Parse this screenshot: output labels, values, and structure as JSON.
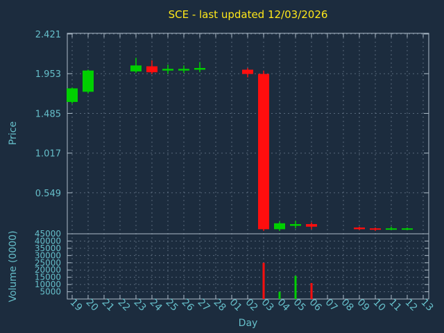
{
  "chart_data": {
    "type": "candlestick",
    "title": "SCE - last updated 12/03/2026",
    "xlabel": "Day",
    "ylabel": "Price",
    "y2label": "Volume (0000)",
    "legend": "none",
    "grid": true,
    "categories": [
      "19",
      "20",
      "21",
      "22",
      "23",
      "24",
      "25",
      "26",
      "27",
      "28",
      "01",
      "02",
      "03",
      "04",
      "05",
      "06",
      "07",
      "08",
      "09",
      "10",
      "11",
      "12",
      "13"
    ],
    "ohlc": [
      [
        1.62,
        1.79,
        1.6,
        1.78
      ],
      [
        1.74,
        2.0,
        1.72,
        1.99
      ],
      null,
      null,
      [
        1.98,
        2.14,
        1.96,
        2.05
      ],
      [
        2.04,
        2.11,
        1.95,
        1.97
      ],
      [
        1.99,
        2.06,
        1.95,
        2.01
      ],
      [
        1.99,
        2.05,
        1.96,
        2.01
      ],
      [
        2.0,
        2.09,
        1.97,
        2.02
      ],
      null,
      null,
      [
        2.0,
        2.02,
        1.91,
        1.95
      ],
      [
        1.95,
        1.99,
        0.1,
        0.12
      ],
      [
        0.12,
        0.21,
        0.1,
        0.19
      ],
      [
        0.16,
        0.22,
        0.13,
        0.18
      ],
      [
        0.18,
        0.2,
        0.12,
        0.15
      ],
      null,
      null,
      [
        0.14,
        0.15,
        0.11,
        0.12
      ],
      [
        0.13,
        0.14,
        0.1,
        0.12
      ],
      [
        0.12,
        0.15,
        0.11,
        0.13
      ],
      [
        0.12,
        0.14,
        0.11,
        0.13
      ],
      null
    ],
    "volumes": [
      0,
      0,
      null,
      null,
      0,
      0,
      0,
      0,
      0,
      null,
      null,
      0,
      25000,
      5000,
      16000,
      11000,
      null,
      null,
      0,
      0,
      0,
      0,
      null
    ],
    "price_ticks": [
      2.421,
      1.953,
      1.485,
      1.017,
      0.549
    ],
    "volume_ticks": [
      45000,
      40000,
      35000,
      30000,
      25000,
      20000,
      15000,
      10000,
      5000
    ],
    "price_range": [
      0.066,
      2.429
    ],
    "volume_range": [
      0,
      45000
    ],
    "colors": {
      "up": "#00d000",
      "down": "#ff0e0e",
      "background": "#1c2c3e",
      "title": "#ffe81a",
      "text": "#66bfca",
      "grid": "#93a5b8",
      "border": "#aebdc9"
    }
  }
}
